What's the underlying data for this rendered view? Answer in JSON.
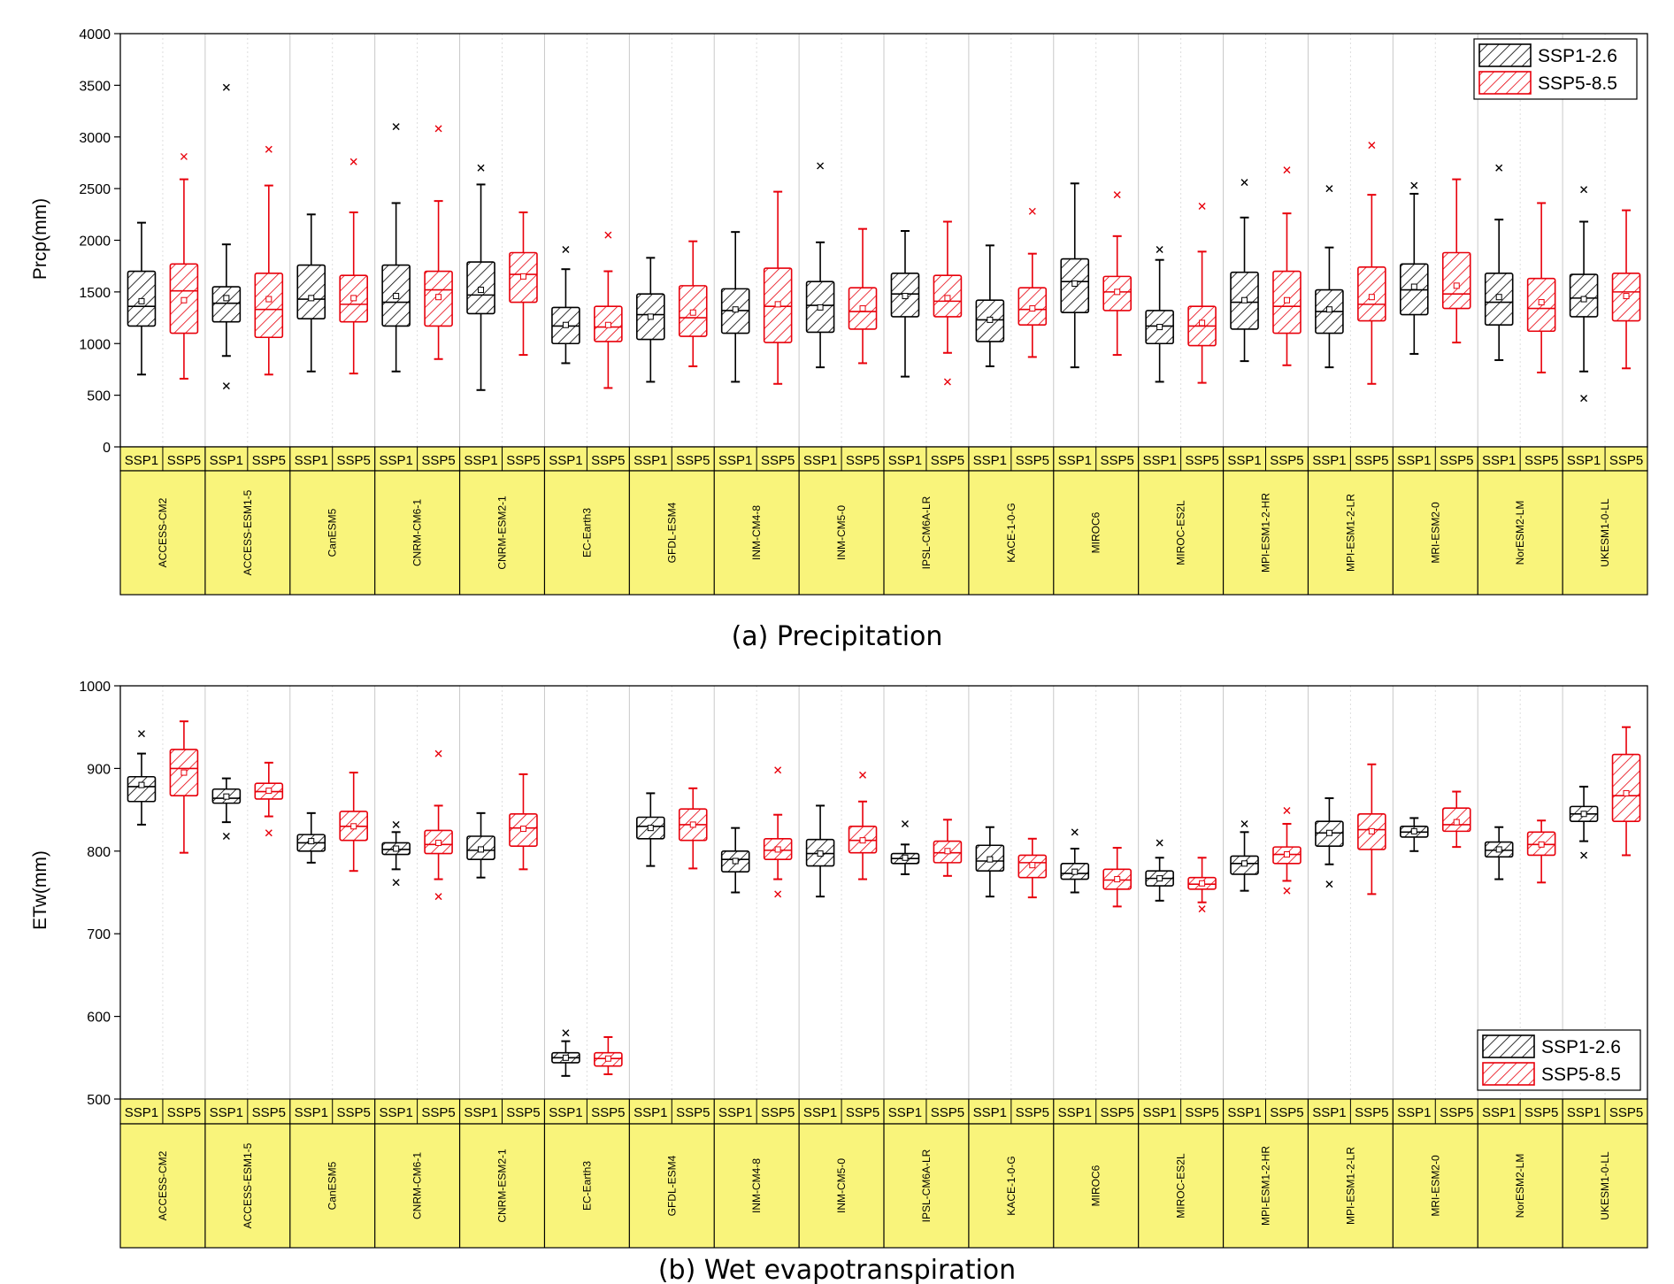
{
  "colors": {
    "ssp1": "#000000",
    "ssp5": "#e8000b",
    "band": "#f9f47b",
    "grid": "#c8c8c8"
  },
  "legend": {
    "ssp1": "SSP1-2.6",
    "ssp5": "SSP5-8.5"
  },
  "categories": [
    "ACCESS-CM2",
    "ACCESS-ESM1-5",
    "CanESM5",
    "CNRM-CM6-1",
    "CNRM-ESM2-1",
    "EC-Earth3",
    "GFDL-ESM4",
    "INM-CM4-8",
    "INM-CM5-0",
    "IPSL-CM6A-LR",
    "KACE-1-0-G",
    "MIROC6",
    "MIROC-ES2L",
    "MPI-ESM1-2-HR",
    "MPI-ESM1-2-LR",
    "MRI-ESM2-0",
    "NorESM2-LM",
    "UKESM1-0-LL"
  ],
  "scenario_labels": [
    "SSP1",
    "SSP5"
  ],
  "chart_data": [
    {
      "type": "box",
      "caption": "(a) Precipitation",
      "ylabel": "Prcp(mm)",
      "ylim": [
        0,
        4000
      ],
      "yticks": [
        0,
        500,
        1000,
        1500,
        2000,
        2500,
        3000,
        3500,
        4000
      ],
      "legend_position": "top-right",
      "series": [
        {
          "name": "SSP1-2.6",
          "boxes": [
            {
              "min": 700,
              "q1": 1170,
              "median": 1360,
              "mean": 1410,
              "q3": 1700,
              "max": 2170,
              "outliers": []
            },
            {
              "min": 880,
              "q1": 1210,
              "median": 1390,
              "mean": 1440,
              "q3": 1550,
              "max": 1960,
              "outliers": [
                3480,
                590
              ]
            },
            {
              "min": 730,
              "q1": 1240,
              "median": 1430,
              "mean": 1440,
              "q3": 1760,
              "max": 2250,
              "outliers": []
            },
            {
              "min": 730,
              "q1": 1170,
              "median": 1400,
              "mean": 1460,
              "q3": 1760,
              "max": 2360,
              "outliers": [
                3100
              ]
            },
            {
              "min": 550,
              "q1": 1290,
              "median": 1470,
              "mean": 1520,
              "q3": 1790,
              "max": 2540,
              "outliers": [
                2700
              ]
            },
            {
              "min": 810,
              "q1": 1000,
              "median": 1170,
              "mean": 1180,
              "q3": 1350,
              "max": 1720,
              "outliers": [
                1910
              ]
            },
            {
              "min": 630,
              "q1": 1040,
              "median": 1280,
              "mean": 1260,
              "q3": 1480,
              "max": 1830,
              "outliers": []
            },
            {
              "min": 630,
              "q1": 1100,
              "median": 1320,
              "mean": 1330,
              "q3": 1530,
              "max": 2080,
              "outliers": []
            },
            {
              "min": 770,
              "q1": 1110,
              "median": 1370,
              "mean": 1350,
              "q3": 1600,
              "max": 1980,
              "outliers": [
                2720
              ]
            },
            {
              "min": 680,
              "q1": 1260,
              "median": 1480,
              "mean": 1460,
              "q3": 1680,
              "max": 2090,
              "outliers": []
            },
            {
              "min": 780,
              "q1": 1020,
              "median": 1230,
              "mean": 1230,
              "q3": 1420,
              "max": 1950,
              "outliers": []
            },
            {
              "min": 770,
              "q1": 1300,
              "median": 1600,
              "mean": 1580,
              "q3": 1820,
              "max": 2550,
              "outliers": []
            },
            {
              "min": 630,
              "q1": 1000,
              "median": 1170,
              "mean": 1160,
              "q3": 1320,
              "max": 1810,
              "outliers": [
                1910
              ]
            },
            {
              "min": 830,
              "q1": 1140,
              "median": 1400,
              "mean": 1420,
              "q3": 1690,
              "max": 2220,
              "outliers": [
                2560
              ]
            },
            {
              "min": 770,
              "q1": 1100,
              "median": 1310,
              "mean": 1330,
              "q3": 1520,
              "max": 1930,
              "outliers": [
                2500
              ]
            },
            {
              "min": 900,
              "q1": 1280,
              "median": 1520,
              "mean": 1550,
              "q3": 1770,
              "max": 2450,
              "outliers": [
                2530
              ]
            },
            {
              "min": 840,
              "q1": 1180,
              "median": 1400,
              "mean": 1450,
              "q3": 1680,
              "max": 2200,
              "outliers": [
                2700
              ]
            },
            {
              "min": 730,
              "q1": 1260,
              "median": 1440,
              "mean": 1430,
              "q3": 1670,
              "max": 2180,
              "outliers": [
                2490,
                470
              ]
            }
          ]
        },
        {
          "name": "SSP5-8.5",
          "boxes": [
            {
              "min": 660,
              "q1": 1100,
              "median": 1510,
              "mean": 1420,
              "q3": 1770,
              "max": 2590,
              "outliers": [
                2810
              ]
            },
            {
              "min": 700,
              "q1": 1060,
              "median": 1330,
              "mean": 1430,
              "q3": 1680,
              "max": 2530,
              "outliers": [
                2880
              ]
            },
            {
              "min": 710,
              "q1": 1210,
              "median": 1380,
              "mean": 1440,
              "q3": 1660,
              "max": 2270,
              "outliers": [
                2760
              ]
            },
            {
              "min": 850,
              "q1": 1170,
              "median": 1520,
              "mean": 1450,
              "q3": 1700,
              "max": 2380,
              "outliers": [
                3080
              ]
            },
            {
              "min": 890,
              "q1": 1400,
              "median": 1670,
              "mean": 1650,
              "q3": 1880,
              "max": 2270,
              "outliers": []
            },
            {
              "min": 570,
              "q1": 1020,
              "median": 1160,
              "mean": 1180,
              "q3": 1360,
              "max": 1700,
              "outliers": [
                2050
              ]
            },
            {
              "min": 780,
              "q1": 1070,
              "median": 1250,
              "mean": 1300,
              "q3": 1560,
              "max": 1990,
              "outliers": []
            },
            {
              "min": 610,
              "q1": 1010,
              "median": 1360,
              "mean": 1380,
              "q3": 1730,
              "max": 2470,
              "outliers": []
            },
            {
              "min": 810,
              "q1": 1140,
              "median": 1310,
              "mean": 1340,
              "q3": 1540,
              "max": 2110,
              "outliers": []
            },
            {
              "min": 910,
              "q1": 1260,
              "median": 1410,
              "mean": 1440,
              "q3": 1660,
              "max": 2180,
              "outliers": [
                630
              ]
            },
            {
              "min": 870,
              "q1": 1180,
              "median": 1330,
              "mean": 1340,
              "q3": 1540,
              "max": 1870,
              "outliers": [
                2280
              ]
            },
            {
              "min": 890,
              "q1": 1320,
              "median": 1500,
              "mean": 1500,
              "q3": 1650,
              "max": 2040,
              "outliers": [
                2440
              ]
            },
            {
              "min": 620,
              "q1": 980,
              "median": 1170,
              "mean": 1200,
              "q3": 1360,
              "max": 1890,
              "outliers": [
                2330
              ]
            },
            {
              "min": 790,
              "q1": 1100,
              "median": 1360,
              "mean": 1420,
              "q3": 1700,
              "max": 2260,
              "outliers": [
                2680
              ]
            },
            {
              "min": 610,
              "q1": 1220,
              "median": 1380,
              "mean": 1450,
              "q3": 1740,
              "max": 2440,
              "outliers": [
                2920
              ]
            },
            {
              "min": 1010,
              "q1": 1340,
              "median": 1480,
              "mean": 1560,
              "q3": 1880,
              "max": 2590,
              "outliers": []
            },
            {
              "min": 720,
              "q1": 1120,
              "median": 1340,
              "mean": 1400,
              "q3": 1630,
              "max": 2360,
              "outliers": []
            },
            {
              "min": 760,
              "q1": 1220,
              "median": 1500,
              "mean": 1460,
              "q3": 1680,
              "max": 2290,
              "outliers": []
            }
          ]
        }
      ]
    },
    {
      "type": "box",
      "caption": "(b) Wet evapotranspiration",
      "ylabel": "ETw(mm)",
      "ylim": [
        500,
        1000
      ],
      "yticks": [
        500,
        600,
        700,
        800,
        900,
        1000
      ],
      "legend_position": "bottom-right",
      "series": [
        {
          "name": "SSP1-2.6",
          "boxes": [
            {
              "min": 832,
              "q1": 860,
              "median": 878,
              "mean": 880,
              "q3": 890,
              "max": 918,
              "outliers": [
                942
              ]
            },
            {
              "min": 835,
              "q1": 858,
              "median": 864,
              "mean": 866,
              "q3": 875,
              "max": 888,
              "outliers": [
                818
              ]
            },
            {
              "min": 786,
              "q1": 800,
              "median": 810,
              "mean": 812,
              "q3": 820,
              "max": 846,
              "outliers": []
            },
            {
              "min": 778,
              "q1": 796,
              "median": 802,
              "mean": 803,
              "q3": 810,
              "max": 823,
              "outliers": [
                832,
                762
              ]
            },
            {
              "min": 768,
              "q1": 790,
              "median": 801,
              "mean": 802,
              "q3": 818,
              "max": 846,
              "outliers": []
            },
            {
              "min": 528,
              "q1": 544,
              "median": 550,
              "mean": 550,
              "q3": 556,
              "max": 570,
              "outliers": [
                580
              ]
            },
            {
              "min": 782,
              "q1": 815,
              "median": 830,
              "mean": 828,
              "q3": 841,
              "max": 870,
              "outliers": []
            },
            {
              "min": 750,
              "q1": 775,
              "median": 790,
              "mean": 788,
              "q3": 800,
              "max": 828,
              "outliers": []
            },
            {
              "min": 745,
              "q1": 782,
              "median": 797,
              "mean": 797,
              "q3": 814,
              "max": 855,
              "outliers": []
            },
            {
              "min": 772,
              "q1": 785,
              "median": 791,
              "mean": 792,
              "q3": 797,
              "max": 808,
              "outliers": [
                833
              ]
            },
            {
              "min": 745,
              "q1": 776,
              "median": 788,
              "mean": 790,
              "q3": 807,
              "max": 829,
              "outliers": []
            },
            {
              "min": 750,
              "q1": 766,
              "median": 773,
              "mean": 775,
              "q3": 785,
              "max": 803,
              "outliers": [
                823
              ]
            },
            {
              "min": 740,
              "q1": 758,
              "median": 767,
              "mean": 767,
              "q3": 776,
              "max": 792,
              "outliers": [
                810
              ]
            },
            {
              "min": 752,
              "q1": 772,
              "median": 785,
              "mean": 785,
              "q3": 794,
              "max": 823,
              "outliers": [
                833
              ]
            },
            {
              "min": 784,
              "q1": 806,
              "median": 822,
              "mean": 822,
              "q3": 836,
              "max": 864,
              "outliers": [
                760
              ]
            },
            {
              "min": 800,
              "q1": 817,
              "median": 823,
              "mean": 824,
              "q3": 830,
              "max": 840,
              "outliers": []
            },
            {
              "min": 766,
              "q1": 793,
              "median": 801,
              "mean": 802,
              "q3": 811,
              "max": 829,
              "outliers": []
            },
            {
              "min": 812,
              "q1": 836,
              "median": 845,
              "mean": 845,
              "q3": 854,
              "max": 878,
              "outliers": [
                795
              ]
            }
          ]
        },
        {
          "name": "SSP5-8.5",
          "boxes": [
            {
              "min": 798,
              "q1": 867,
              "median": 900,
              "mean": 895,
              "q3": 923,
              "max": 957,
              "outliers": []
            },
            {
              "min": 842,
              "q1": 863,
              "median": 872,
              "mean": 873,
              "q3": 882,
              "max": 907,
              "outliers": [
                822
              ]
            },
            {
              "min": 776,
              "q1": 813,
              "median": 830,
              "mean": 830,
              "q3": 848,
              "max": 895,
              "outliers": []
            },
            {
              "min": 766,
              "q1": 797,
              "median": 808,
              "mean": 810,
              "q3": 825,
              "max": 855,
              "outliers": [
                918,
                745
              ]
            },
            {
              "min": 778,
              "q1": 806,
              "median": 828,
              "mean": 827,
              "q3": 845,
              "max": 893,
              "outliers": []
            },
            {
              "min": 530,
              "q1": 540,
              "median": 549,
              "mean": 549,
              "q3": 556,
              "max": 575,
              "outliers": []
            },
            {
              "min": 779,
              "q1": 813,
              "median": 832,
              "mean": 832,
              "q3": 851,
              "max": 876,
              "outliers": []
            },
            {
              "min": 766,
              "q1": 790,
              "median": 801,
              "mean": 802,
              "q3": 815,
              "max": 844,
              "outliers": [
                898,
                748
              ]
            },
            {
              "min": 766,
              "q1": 798,
              "median": 813,
              "mean": 813,
              "q3": 830,
              "max": 860,
              "outliers": [
                892
              ]
            },
            {
              "min": 770,
              "q1": 786,
              "median": 798,
              "mean": 800,
              "q3": 812,
              "max": 838,
              "outliers": []
            },
            {
              "min": 744,
              "q1": 768,
              "median": 786,
              "mean": 783,
              "q3": 795,
              "max": 815,
              "outliers": []
            },
            {
              "min": 733,
              "q1": 754,
              "median": 765,
              "mean": 766,
              "q3": 778,
              "max": 804,
              "outliers": []
            },
            {
              "min": 738,
              "q1": 754,
              "median": 760,
              "mean": 761,
              "q3": 768,
              "max": 792,
              "outliers": [
                730
              ]
            },
            {
              "min": 764,
              "q1": 785,
              "median": 796,
              "mean": 796,
              "q3": 805,
              "max": 833,
              "outliers": [
                849,
                752
              ]
            },
            {
              "min": 748,
              "q1": 802,
              "median": 826,
              "mean": 824,
              "q3": 845,
              "max": 905,
              "outliers": []
            },
            {
              "min": 805,
              "q1": 824,
              "median": 832,
              "mean": 835,
              "q3": 852,
              "max": 872,
              "outliers": []
            },
            {
              "min": 762,
              "q1": 795,
              "median": 808,
              "mean": 808,
              "q3": 823,
              "max": 837,
              "outliers": []
            },
            {
              "min": 795,
              "q1": 836,
              "median": 867,
              "mean": 870,
              "q3": 917,
              "max": 950,
              "outliers": []
            }
          ]
        }
      ]
    }
  ]
}
